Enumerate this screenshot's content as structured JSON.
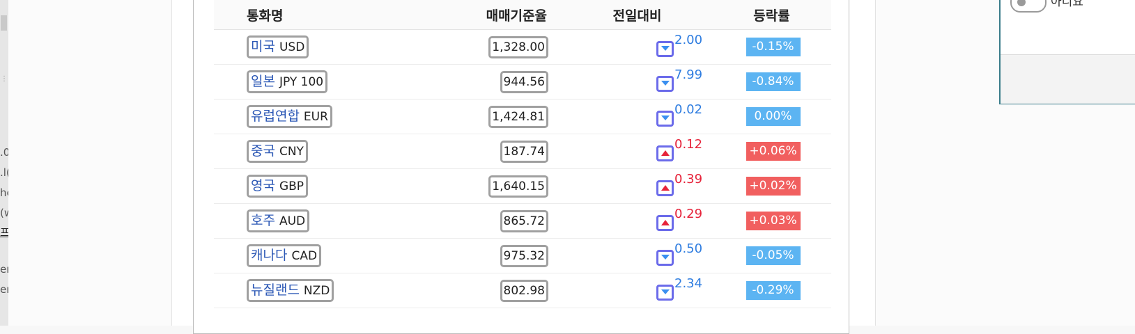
{
  "left_fragments": [
    ".0",
    ".l(",
    "he",
    "(w",
    "프",
    "er",
    "er"
  ],
  "table": {
    "headers": {
      "name": "통화명",
      "rate": "매매기준율",
      "change": "전일대비",
      "percent": "등락률"
    },
    "rows": [
      {
        "name_kr": "미국",
        "code": "USD",
        "rate": "1,328.00",
        "change": "2.00",
        "direction": "down",
        "percent": "-0.15%"
      },
      {
        "name_kr": "일본",
        "code": "JPY 100",
        "rate": "944.56",
        "change": "7.99",
        "direction": "down",
        "percent": "-0.84%"
      },
      {
        "name_kr": "유럽연합",
        "code": "EUR",
        "rate": "1,424.81",
        "change": "0.02",
        "direction": "down",
        "percent": "0.00%"
      },
      {
        "name_kr": "중국",
        "code": "CNY",
        "rate": "187.74",
        "change": "0.12",
        "direction": "up",
        "percent": "+0.06%"
      },
      {
        "name_kr": "영국",
        "code": "GBP",
        "rate": "1,640.15",
        "change": "0.39",
        "direction": "up",
        "percent": "+0.02%"
      },
      {
        "name_kr": "호주",
        "code": "AUD",
        "rate": "865.72",
        "change": "0.29",
        "direction": "up",
        "percent": "+0.03%"
      },
      {
        "name_kr": "캐나다",
        "code": "CAD",
        "rate": "975.32",
        "change": "0.50",
        "direction": "down",
        "percent": "-0.05%"
      },
      {
        "name_kr": "뉴질랜드",
        "code": "NZD",
        "rate": "802.98",
        "change": "2.34",
        "direction": "down",
        "percent": "-0.29%"
      }
    ]
  },
  "panel": {
    "toggle_label": "아니요",
    "toggle_on": false
  },
  "colors": {
    "down": "#2f7de0",
    "up": "#e6233a",
    "badge_down": "#5cb4f2",
    "badge_up": "#f15f5f",
    "arrow_border": "#6b6bea"
  },
  "icons": {
    "down": "caret-down-icon",
    "up": "caret-up-icon"
  }
}
